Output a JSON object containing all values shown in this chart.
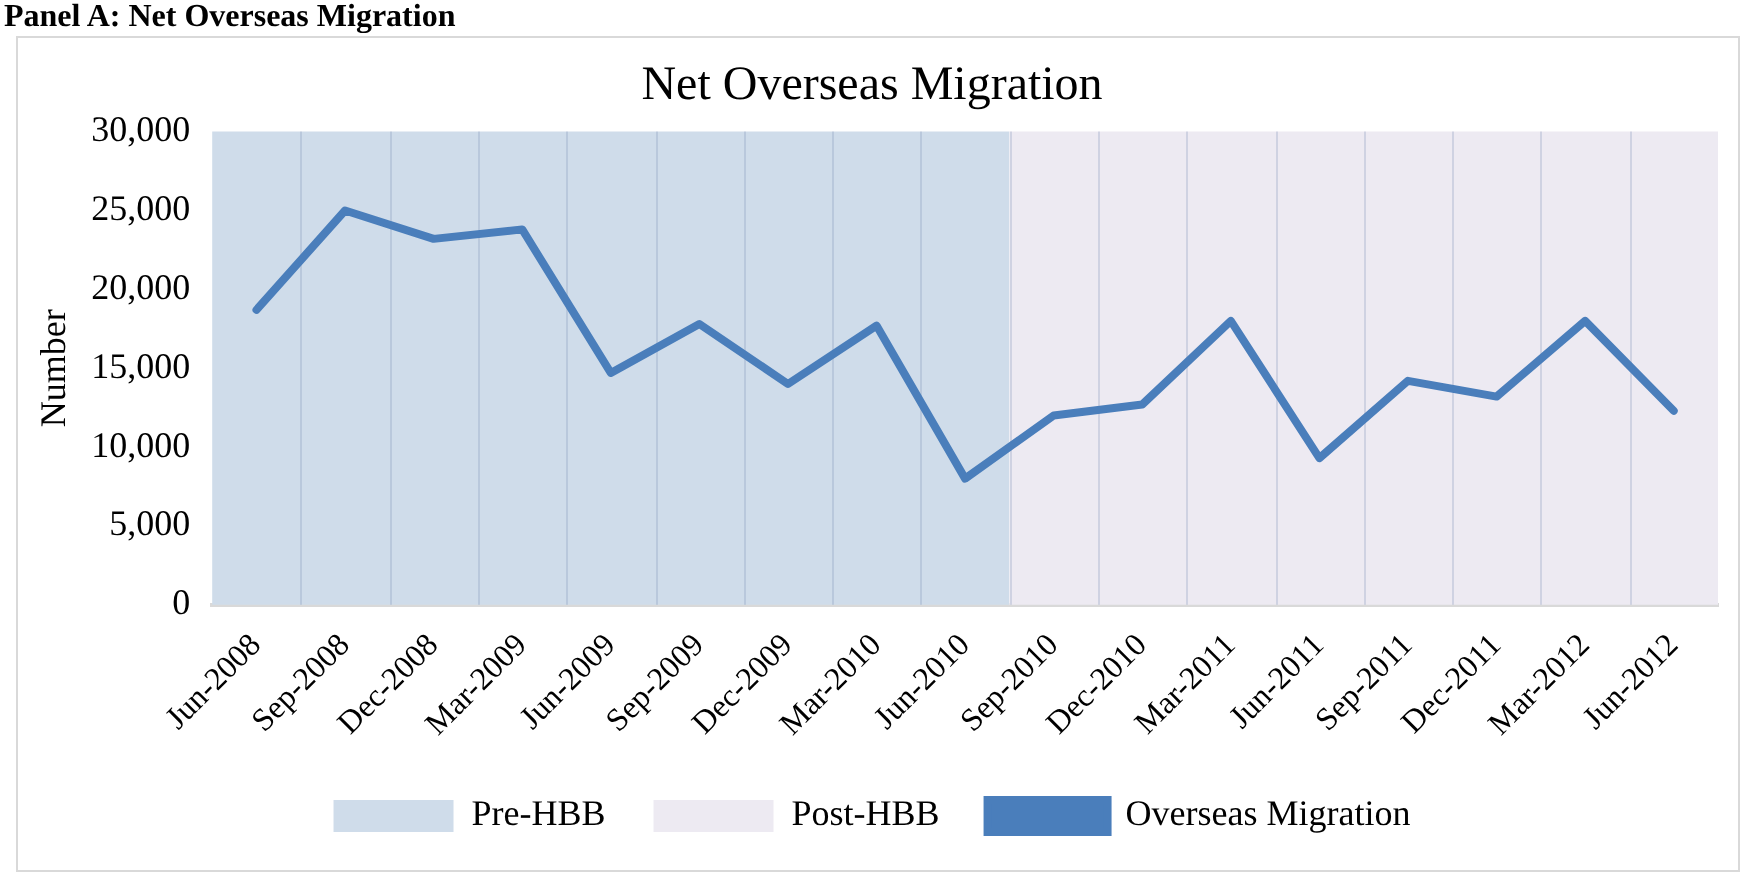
{
  "chart_data": {
    "type": "line",
    "title": "Net Overseas Migration",
    "ylabel": "Number",
    "annotations": [
      "Panel A: Net Overseas Migration"
    ],
    "categories": [
      "Jun-2008",
      "Sep-2008",
      "Dec-2008",
      "Mar-2009",
      "Jun-2009",
      "Sep-2009",
      "Dec-2009",
      "Mar-2010",
      "Jun-2010",
      "Sep-2010",
      "Dec-2010",
      "Mar-2011",
      "Jun-2011",
      "Sep-2011",
      "Dec-2011",
      "Mar-2012",
      "Jun-2012"
    ],
    "series": [
      {
        "name": "Overseas Migration",
        "color": "#4a7ebb",
        "values": [
          18700,
          25000,
          23200,
          23800,
          14700,
          17800,
          14000,
          17700,
          8000,
          12000,
          12700,
          18000,
          9300,
          14200,
          13200,
          18000,
          12300
        ]
      }
    ],
    "bands": [
      {
        "axis": "x",
        "from": "Jun-2008",
        "to": "Jun-2010",
        "label": "Pre-HBB",
        "color": "#cfdcea"
      },
      {
        "axis": "x",
        "from": "Sep-2010",
        "to": "Jun-2012",
        "label": "Post-HBB",
        "color": "#edeaf2"
      }
    ],
    "ylim": [
      0,
      30000
    ],
    "yticks": [
      0,
      {
        "value": 5000,
        "label": "5,000"
      },
      {
        "value": 10000,
        "label": "10,000"
      },
      {
        "value": 15000,
        "label": "15,000"
      },
      {
        "value": 20000,
        "label": "20,000"
      },
      {
        "value": 25000,
        "label": "25,000"
      },
      {
        "value": 30000,
        "label": "30,000"
      }
    ],
    "grid": "x",
    "legend": "bottom",
    "marker": "none",
    "line_style": "solid"
  }
}
